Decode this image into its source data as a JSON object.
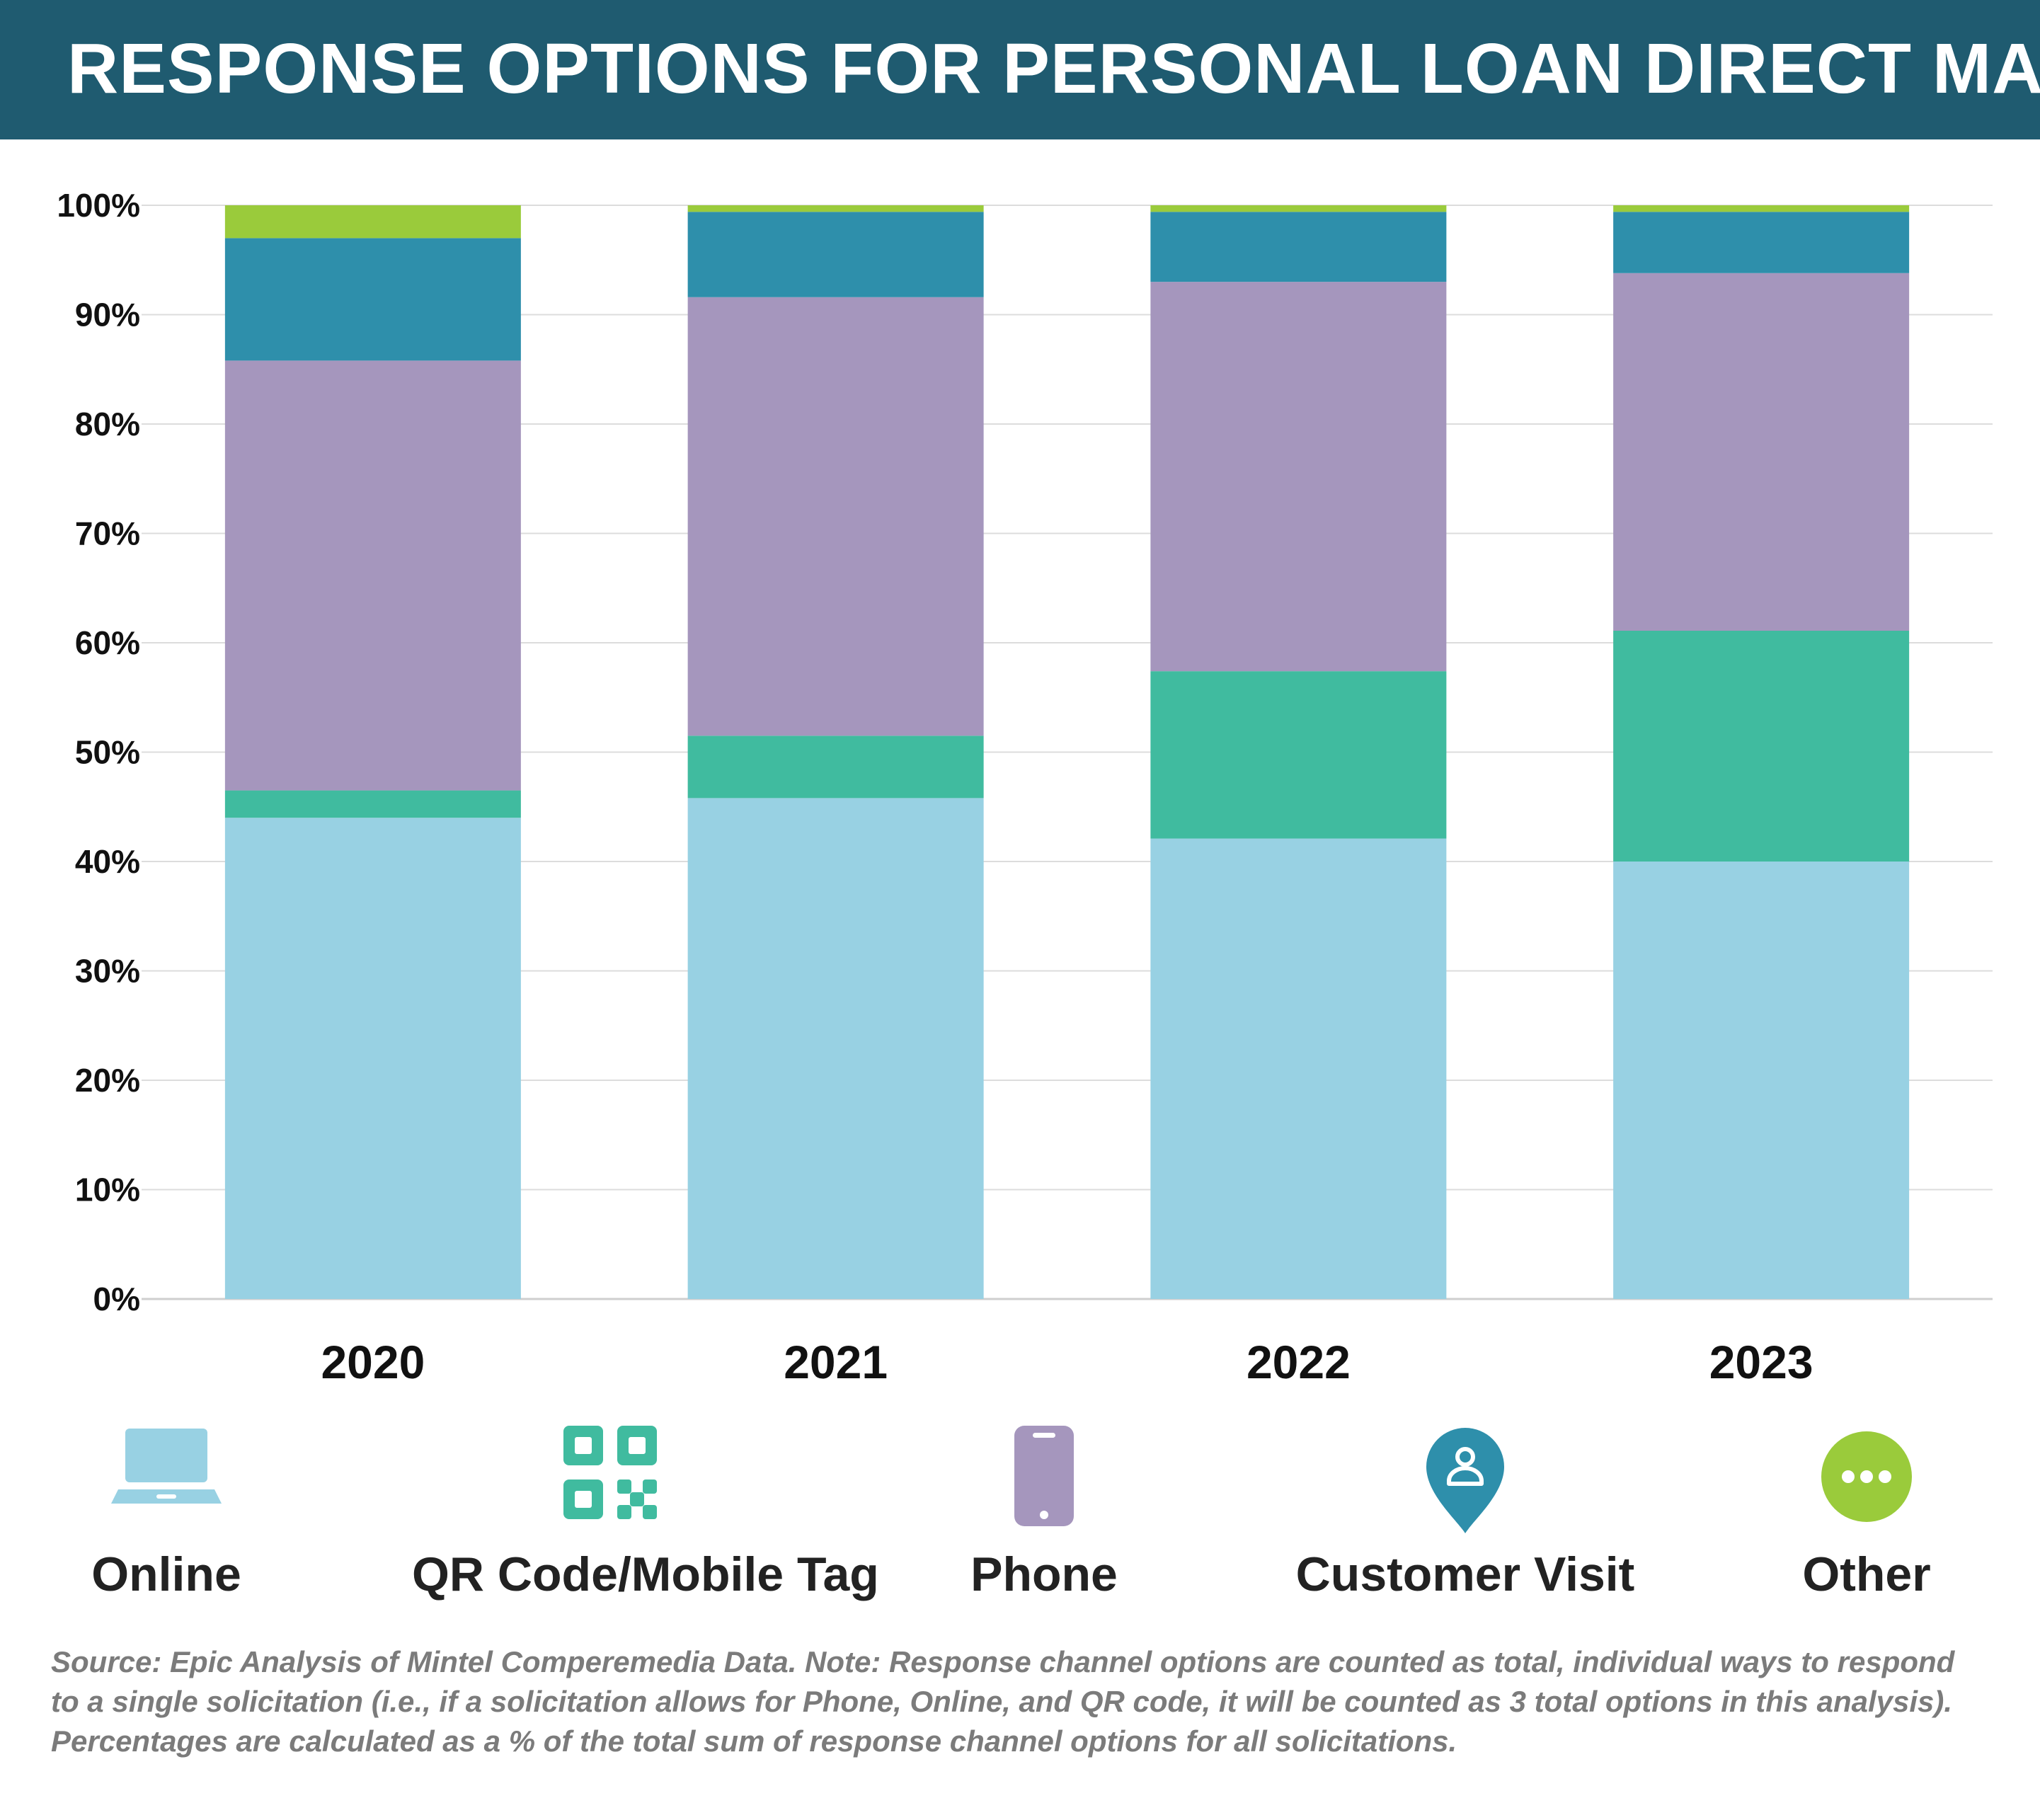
{
  "header": {
    "title": "RESPONSE OPTIONS FOR PERSONAL LOAN DIRECT MAIL"
  },
  "chart_data": {
    "type": "bar",
    "stacked": true,
    "categories": [
      "2020",
      "2021",
      "2022",
      "2023"
    ],
    "series": [
      {
        "name": "Online",
        "color": "#98d1e3",
        "values": [
          44.0,
          45.8,
          42.1,
          40.0
        ]
      },
      {
        "name": "QR Code/Mobile Tag",
        "color": "#40bb9f",
        "values": [
          2.5,
          5.7,
          15.3,
          21.1
        ]
      },
      {
        "name": "Phone",
        "color": "#a596bd",
        "values": [
          39.3,
          40.1,
          35.6,
          32.7
        ]
      },
      {
        "name": "Customer Visit",
        "color": "#2e8fab",
        "values": [
          11.2,
          7.8,
          6.4,
          5.6
        ]
      },
      {
        "name": "Other",
        "color": "#9acb3b",
        "values": [
          3.0,
          0.6,
          0.6,
          0.6
        ]
      }
    ],
    "ylim": [
      0,
      100
    ],
    "yticks": [
      "0%",
      "10%",
      "20%",
      "30%",
      "40%",
      "50%",
      "60%",
      "70%",
      "80%",
      "90%",
      "100%"
    ],
    "grid": true,
    "legend_position": "bottom"
  },
  "legend": [
    {
      "label": "Online",
      "icon": "laptop-icon",
      "color": "#98d1e3"
    },
    {
      "label": "QR Code/Mobile Tag",
      "icon": "qr-code-icon",
      "color": "#40bb9f"
    },
    {
      "label": "Phone",
      "icon": "smartphone-icon",
      "color": "#a596bd"
    },
    {
      "label": "Customer Visit",
      "icon": "location-person-icon",
      "color": "#2e8fab"
    },
    {
      "label": "Other",
      "icon": "more-dots-icon",
      "color": "#9acb3b"
    }
  ],
  "footnote": "Source: Epic Analysis of Mintel Comperemedia Data. Note: Response channel options are counted as total, individual ways to respond to a single solicitation (i.e., if a solicitation allows for Phone, Online, and QR code, it will be counted as 3 total options in this analysis). Percentages are calculated as a % of the total sum of response channel options for all solicitations."
}
